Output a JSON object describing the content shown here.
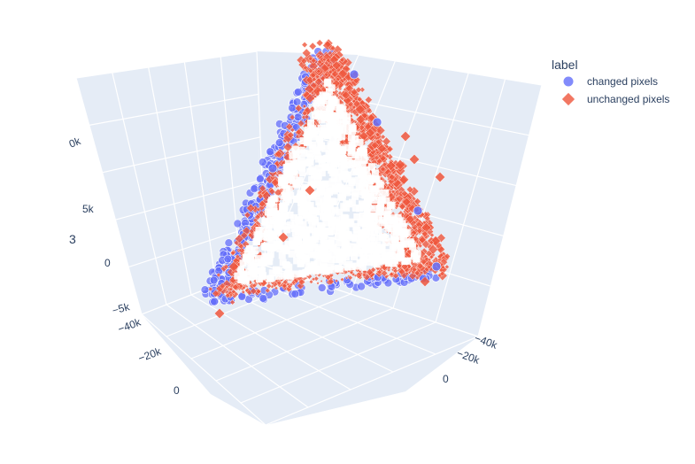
{
  "chart_data": {
    "type": "scatter3d",
    "title": "",
    "legend": {
      "title": "label",
      "placement": "top-right",
      "entries": [
        {
          "name": "changed pixels",
          "color": "#636efa",
          "symbol": "circle"
        },
        {
          "name": "unchanged pixels",
          "color": "#ef553b",
          "symbol": "diamond"
        }
      ]
    },
    "axes": {
      "x": {
        "title": "",
        "tick_labels": [
          "−40k",
          "−20k",
          "0"
        ]
      },
      "y": {
        "title": "",
        "tick_labels": [
          "−40k",
          "−20k",
          "0"
        ]
      },
      "z": {
        "title": "3",
        "tick_labels": [
          "−5k",
          "0",
          "5k",
          "0k"
        ]
      }
    },
    "grid": true,
    "background_color": "#e5ecf6",
    "series": [
      {
        "name": "changed pixels",
        "color": "#636efa",
        "symbol": "circle"
      },
      {
        "name": "unchanged pixels",
        "color": "#ef553b",
        "symbol": "diamond"
      }
    ]
  }
}
